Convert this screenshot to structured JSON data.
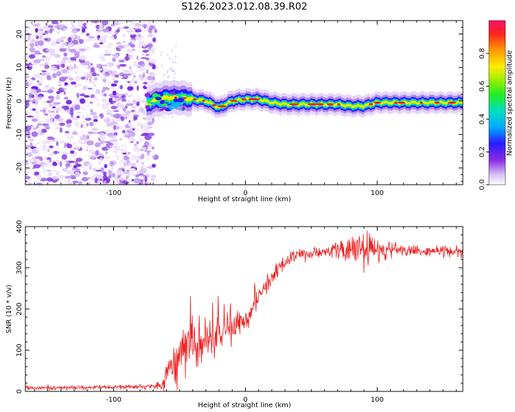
{
  "title": "S126.2023.012.08.39.R02",
  "chart_data": [
    {
      "type": "heatmap",
      "xlabel": "Height of straight line (km)",
      "ylabel": "Frequency (Hz)",
      "xlim": [
        -167,
        165
      ],
      "ylim": [
        -25,
        24
      ],
      "x_ticks": [
        -100,
        0,
        100
      ],
      "y_ticks": [
        -20,
        -10,
        0,
        10,
        20
      ],
      "colorbar": {
        "label": "Normalized spectral amplitude",
        "range": [
          0,
          1
        ],
        "ticks": [
          0.0,
          0.2,
          0.4,
          0.6,
          0.8
        ]
      },
      "ridge": {
        "description_x": [
          -75,
          -70,
          -60,
          -50,
          -40,
          -30,
          -25,
          -20,
          -15,
          -10,
          0,
          10,
          20,
          30,
          50,
          70,
          80,
          85,
          90,
          100,
          120,
          140,
          165
        ],
        "freq_hz": [
          -1,
          0,
          1,
          1,
          0.5,
          0,
          -1,
          -2,
          -1,
          0,
          0.5,
          0.5,
          -0.5,
          -1,
          -1,
          -1,
          -1.5,
          -1.5,
          -1.5,
          -0.5,
          -0.5,
          -0.5,
          -0.5
        ]
      },
      "noise_region_x": [
        -167,
        -72
      ]
    },
    {
      "type": "line",
      "xlabel": "Height of straight line (km)",
      "ylabel": "SNR (10 * v/v)",
      "xlim": [
        -167,
        165
      ],
      "ylim": [
        0,
        400
      ],
      "x_ticks": [
        -100,
        0,
        100
      ],
      "y_ticks": [
        0,
        100,
        200,
        300,
        400
      ],
      "series_color": "#ee2222",
      "envelope": {
        "x": [
          -167,
          -100,
          -70,
          -62,
          -58,
          -50,
          -40,
          -30,
          -20,
          -10,
          0,
          10,
          20,
          30,
          40,
          60,
          80,
          90,
          100,
          110,
          130,
          165
        ],
        "mean": [
          8,
          10,
          12,
          20,
          60,
          90,
          105,
          120,
          140,
          150,
          170,
          225,
          280,
          315,
          330,
          340,
          345,
          345,
          340,
          345,
          340,
          340
        ],
        "spread": [
          4,
          4,
          5,
          15,
          40,
          50,
          45,
          40,
          35,
          30,
          25,
          20,
          15,
          12,
          12,
          12,
          25,
          40,
          25,
          15,
          12,
          12
        ]
      }
    }
  ]
}
